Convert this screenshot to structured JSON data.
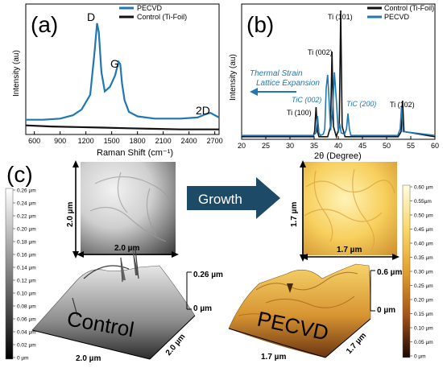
{
  "panel_a": {
    "label": "(a)",
    "peaks": {
      "d": "D",
      "g": "G",
      "twod": "2D"
    }
  },
  "panel_b": {
    "label": "(b)",
    "annotation": {
      "line1": "Thermal Strain",
      "line2": "Lattice Expansion"
    },
    "peak_labels": {
      "ti101": "Ti (101)",
      "ti002": "Ti (002)",
      "tic002": "TiC (002)",
      "ti100": "Ti (100)",
      "tic200": "TiC (200)",
      "ti102": "Ti (102)"
    }
  },
  "panel_c": {
    "label": "(c)",
    "growth_label": "Growth",
    "control": {
      "side_label": "2.0 µm",
      "bottom_label": "2.0 µm",
      "name": "Control",
      "z_top": "0.26 µm",
      "z_bottom": "0 µm",
      "iso_x": "2.0 µm",
      "iso_y": "2.0 µm"
    },
    "pecvd": {
      "side_label": "1.7 µm",
      "bottom_label": "1.7 µm",
      "name": "PECVD",
      "z_top": "0.6 µm",
      "z_bottom": "0 µm",
      "iso_x": "1.7 µm",
      "iso_y": "1.7 µm"
    },
    "gray_scale": [
      "0.26 µm",
      "0.24 µm",
      "0.22 µm",
      "0.20 µm",
      "0.18 µm",
      "0.16 µm",
      "0.14 µm",
      "0.12 µm",
      "0.10 µm",
      "0.08 µm",
      "0.06 µm",
      "0.04 µm",
      "0.02 µm",
      "0 µm"
    ],
    "color_scale": [
      "0.60 µm",
      "0.55µm",
      "0.50 µm",
      "0.45 µm",
      "0.40 µm",
      "0.35 µm",
      "0.30 µm",
      "0.25 µm",
      "0.20 µm",
      "0.15 µm",
      "0.10 µm",
      "0.05 µm",
      "0 µm"
    ]
  },
  "chart_data": [
    {
      "type": "line",
      "xlabel": "Raman Shift (cm⁻¹)",
      "ylabel": "Intensity (au)",
      "xlim": [
        500,
        2750
      ],
      "ylim": [
        0,
        1.15
      ],
      "x_ticks": [
        600,
        900,
        1200,
        1500,
        1800,
        2100,
        2400,
        2700
      ],
      "legend_position": "top-right",
      "series": [
        {
          "name": "PECVD",
          "color": "#1f77b4",
          "x": [
            500,
            700,
            900,
            1050,
            1150,
            1250,
            1300,
            1330,
            1350,
            1380,
            1420,
            1480,
            1540,
            1580,
            1600,
            1620,
            1650,
            1700,
            1800,
            2000,
            2300,
            2500,
            2600,
            2650,
            2700,
            2750
          ],
          "y": [
            0.13,
            0.13,
            0.14,
            0.17,
            0.22,
            0.35,
            0.72,
            0.98,
            0.9,
            0.55,
            0.38,
            0.42,
            0.52,
            0.64,
            0.62,
            0.45,
            0.3,
            0.2,
            0.16,
            0.14,
            0.14,
            0.15,
            0.18,
            0.19,
            0.17,
            0.15
          ]
        },
        {
          "name": "Control (Ti-Foil)",
          "color": "#111111",
          "x": [
            500,
            800,
            1100,
            1400,
            1700,
            2000,
            2300,
            2600,
            2750
          ],
          "y": [
            0.08,
            0.07,
            0.065,
            0.06,
            0.055,
            0.05,
            0.045,
            0.045,
            0.045
          ]
        }
      ]
    },
    {
      "type": "line",
      "xlabel": "2θ (Degree)",
      "ylabel": "Intensity (au)",
      "xlim": [
        20,
        60
      ],
      "ylim": [
        0,
        1.05
      ],
      "x_ticks": [
        20,
        25,
        30,
        35,
        40,
        45,
        50,
        55,
        60
      ],
      "legend_position": "top-right",
      "series": [
        {
          "name": "Control (Ti-Foil)",
          "color": "#111111",
          "x": [
            20,
            34.8,
            35.1,
            35.4,
            35.7,
            36,
            37.8,
            38.4,
            38.7,
            39,
            39.6,
            40.2,
            40.5,
            40.8,
            41.4,
            52.4,
            53,
            53.3,
            53.6,
            60
          ],
          "y": [
            0.02,
            0.02,
            0.06,
            0.25,
            0.06,
            0.02,
            0.02,
            0.1,
            0.68,
            0.1,
            0.02,
            0.1,
            1.0,
            0.1,
            0.02,
            0.02,
            0.06,
            0.3,
            0.06,
            0.02
          ]
        },
        {
          "name": "PECVD",
          "color": "#1f77b4",
          "x": [
            20,
            34.8,
            35.4,
            35.7,
            36,
            36.3,
            36.9,
            37.2,
            37.5,
            37.8,
            38.1,
            38.4,
            38.8,
            39.2,
            39.6,
            40,
            40.3,
            40.6,
            41.3,
            41.7,
            42,
            42.3,
            42.6,
            52.3,
            52.8,
            53.1,
            53.4,
            60
          ],
          "y": [
            0.03,
            0.03,
            0.05,
            0.18,
            0.05,
            0.03,
            0.04,
            0.08,
            0.4,
            0.5,
            0.3,
            0.07,
            0.2,
            0.52,
            0.3,
            0.05,
            0.12,
            0.05,
            0.04,
            0.08,
            0.2,
            0.08,
            0.03,
            0.03,
            0.08,
            0.26,
            0.06,
            0.03
          ]
        }
      ]
    }
  ]
}
